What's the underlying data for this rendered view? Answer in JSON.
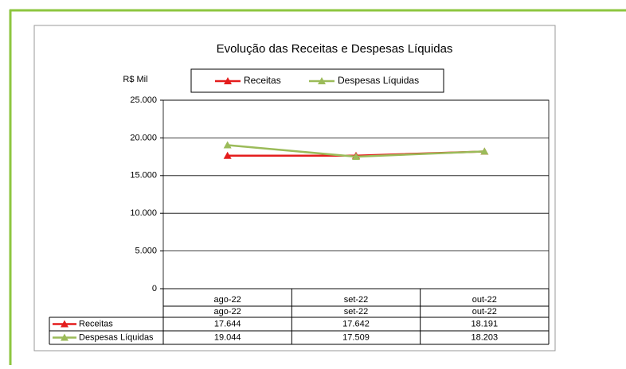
{
  "chart_data": {
    "type": "line",
    "title": "Evolução das Receitas e Despesas Líquidas",
    "ylabel": "R$ Mil",
    "categories": [
      "ago-22",
      "set-22",
      "out-22"
    ],
    "series": [
      {
        "name": "Receitas",
        "color": "#e41d1d",
        "values": [
          17644,
          17642,
          18191
        ],
        "value_labels": [
          "17.644",
          "17.642",
          "18.191"
        ]
      },
      {
        "name": "Despesas Líquidas",
        "color": "#9bbb59",
        "values": [
          19044,
          17509,
          18203
        ],
        "value_labels": [
          "19.044",
          "17.509",
          "18.203"
        ]
      }
    ],
    "ylim": [
      0,
      25000
    ],
    "yticks": [
      {
        "value": 0,
        "label": "0"
      },
      {
        "value": 5000,
        "label": "5.000"
      },
      {
        "value": 10000,
        "label": "10.000"
      },
      {
        "value": 15000,
        "label": "15.000"
      },
      {
        "value": 20000,
        "label": "20.000"
      },
      {
        "value": 25000,
        "label": "25.000"
      }
    ],
    "grid": true,
    "legend": "top"
  }
}
